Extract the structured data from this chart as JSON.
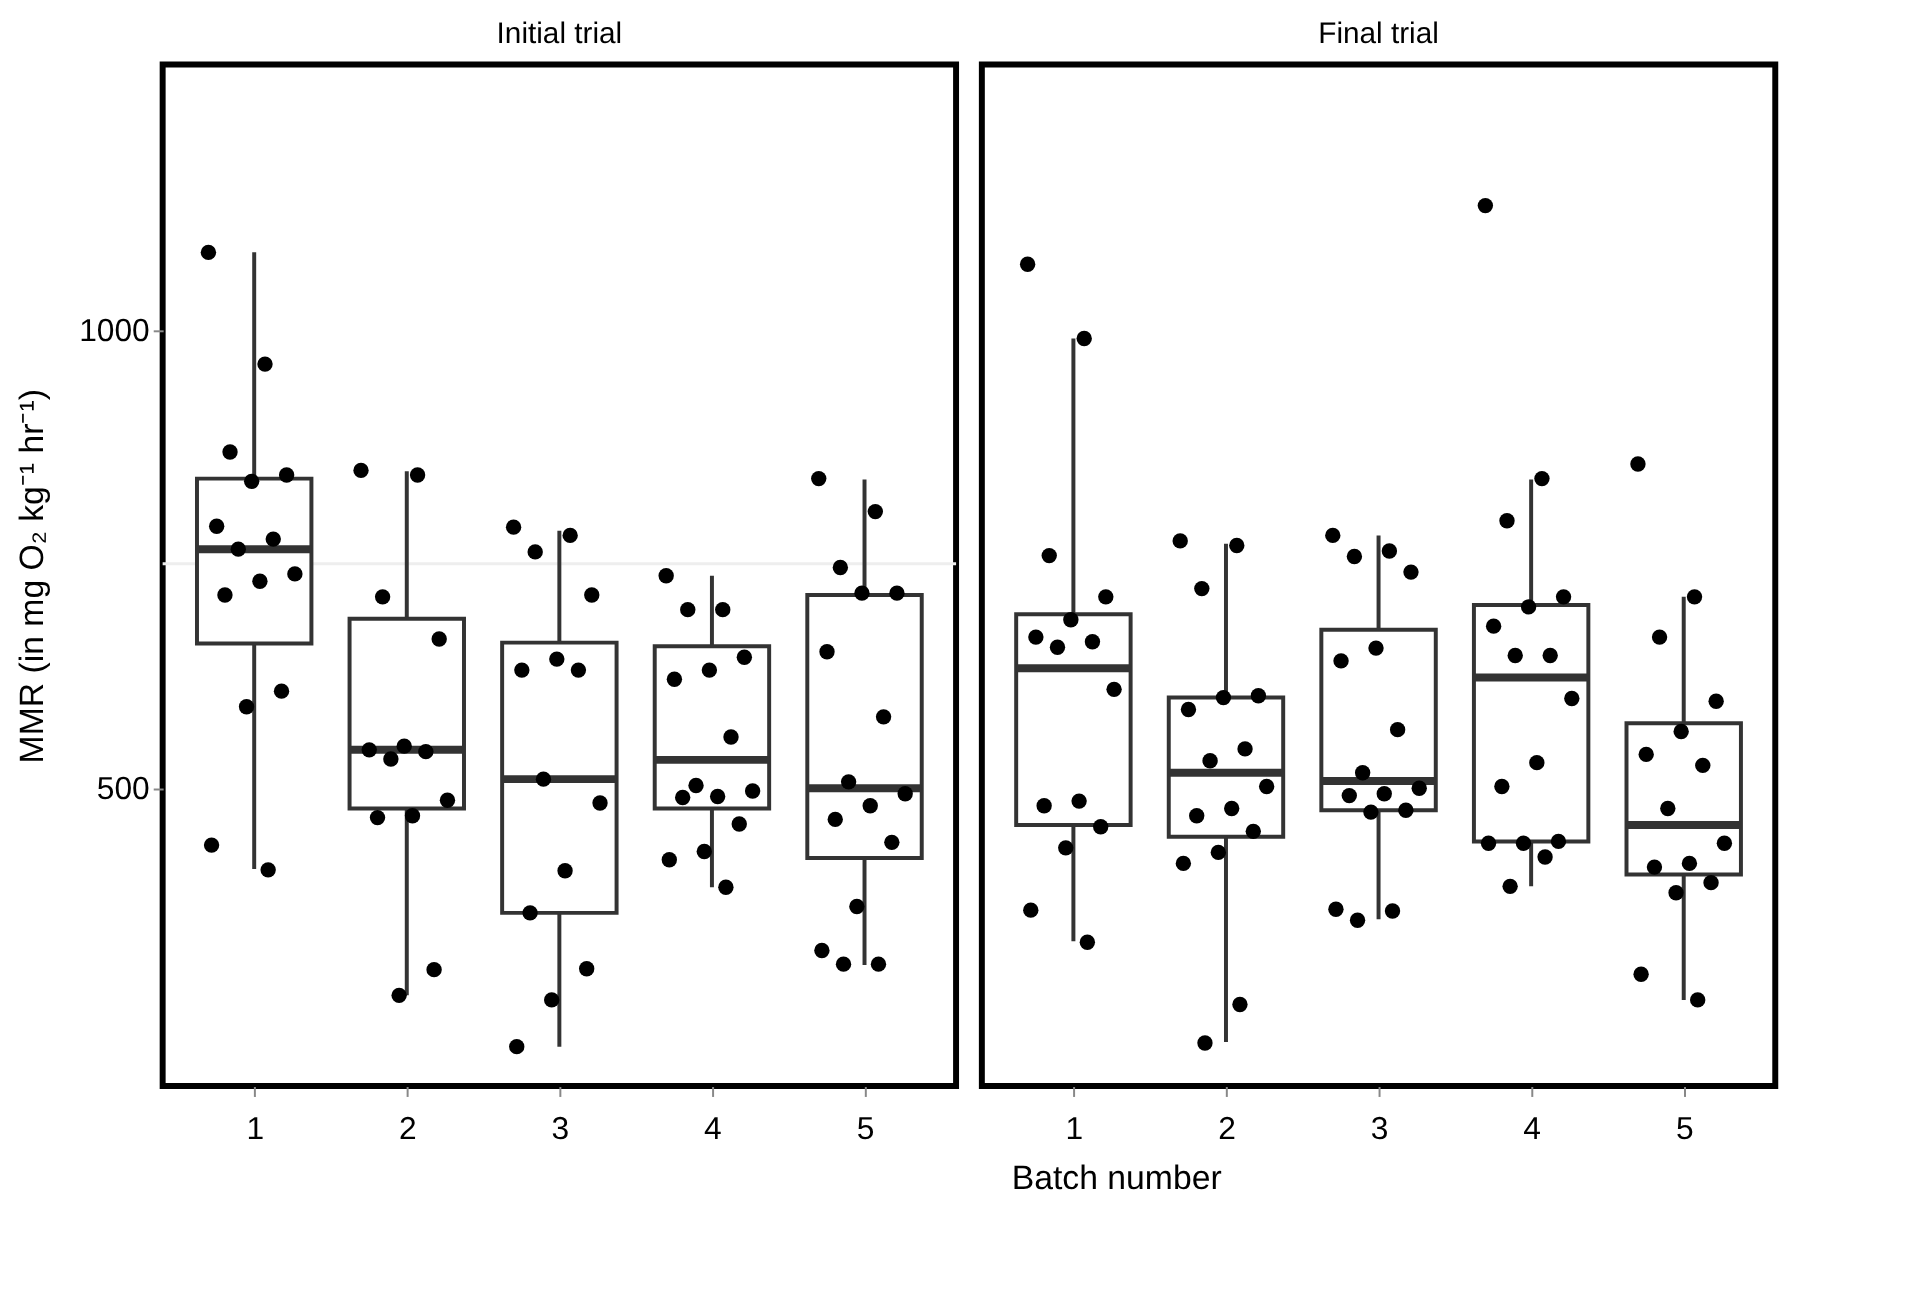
{
  "chart_data": [
    {
      "type": "box",
      "title": "Initial trial",
      "xlabel": "Batch number",
      "ylabel": "MMR (in mg O₂ kg⁻¹ hr⁻¹)",
      "categories": [
        "1",
        "2",
        "3",
        "4",
        "5"
      ],
      "ylim": [
        175,
        1290
      ],
      "yticks": [
        500,
        1000
      ],
      "grid": false,
      "legend": false,
      "marker": "circle",
      "ref_lines": [
        {
          "axis": "y",
          "value": 745,
          "color": "#eeeeee"
        }
      ],
      "series": [
        {
          "type": "box",
          "color": "#333333",
          "boxes": [
            {
              "low": 412,
              "q1": 658,
              "median": 761,
              "q3": 838,
              "high": 1085
            },
            {
              "low": 274,
              "q1": 478,
              "median": 542,
              "q3": 685,
              "high": 846
            },
            {
              "low": 218,
              "q1": 364,
              "median": 510,
              "q3": 659,
              "high": 781
            },
            {
              "low": 392,
              "q1": 478,
              "median": 531,
              "q3": 655,
              "high": 732
            },
            {
              "low": 307,
              "q1": 424,
              "median": 500,
              "q3": 711,
              "high": 837
            }
          ]
        },
        {
          "type": "scatter",
          "color": "#000000",
          "x": [
            "1",
            "1",
            "1",
            "1",
            "1",
            "1",
            "1",
            "1",
            "1",
            "1",
            "1",
            "1",
            "1",
            "1",
            "1",
            "2",
            "2",
            "2",
            "2",
            "2",
            "2",
            "2",
            "2",
            "2",
            "2",
            "2",
            "2",
            "2",
            "3",
            "3",
            "3",
            "3",
            "3",
            "3",
            "3",
            "3",
            "3",
            "3",
            "3",
            "3",
            "3",
            "3",
            "4",
            "4",
            "4",
            "4",
            "4",
            "4",
            "4",
            "4",
            "4",
            "4",
            "4",
            "4",
            "4",
            "4",
            "4",
            "5",
            "5",
            "5",
            "5",
            "5",
            "5",
            "5",
            "5",
            "5",
            "5",
            "5",
            "5",
            "5",
            "5",
            "5",
            "5"
          ],
          "values": [
            1085,
            963,
            867,
            842,
            835,
            786,
            772,
            761,
            734,
            726,
            711,
            606,
            589,
            438,
            411,
            847,
            842,
            709,
            663,
            546,
            542,
            540,
            532,
            487,
            470,
            468,
            302,
            274,
            785,
            776,
            758,
            711,
            641,
            629,
            629,
            510,
            484,
            410,
            364,
            303,
            269,
            218,
            732,
            695,
            695,
            643,
            629,
            619,
            556,
            503,
            497,
            491,
            490,
            461,
            431,
            422,
            392,
            838,
            802,
            741,
            713,
            713,
            649,
            578,
            507,
            494,
            481,
            466,
            441,
            371,
            323,
            308,
            308
          ]
        }
      ]
    },
    {
      "type": "box",
      "title": "Final trial",
      "categories": [
        "1",
        "2",
        "3",
        "4",
        "5"
      ],
      "ylim": [
        175,
        1290
      ],
      "tick_labels": "x",
      "grid": false,
      "legend": false,
      "marker": "circle",
      "series": [
        {
          "type": "box",
          "color": "#333333",
          "boxes": [
            {
              "low": 333,
              "q1": 460,
              "median": 631,
              "q3": 690,
              "high": 991
            },
            {
              "low": 223,
              "q1": 447,
              "median": 517,
              "q3": 599,
              "high": 767
            },
            {
              "low": 357,
              "q1": 476,
              "median": 508,
              "q3": 673,
              "high": 776
            },
            {
              "low": 393,
              "q1": 442,
              "median": 621,
              "q3": 700,
              "high": 837
            },
            {
              "low": 269,
              "q1": 406,
              "median": 460,
              "q3": 571,
              "high": 709
            }
          ]
        },
        {
          "type": "scatter",
          "color": "#000000",
          "x": [
            "1",
            "1",
            "1",
            "1",
            "1",
            "1",
            "1",
            "1",
            "1",
            "1",
            "1",
            "1",
            "1",
            "1",
            "1",
            "2",
            "2",
            "2",
            "2",
            "2",
            "2",
            "2",
            "2",
            "2",
            "2",
            "2",
            "2",
            "2",
            "2",
            "2",
            "2",
            "3",
            "3",
            "3",
            "3",
            "3",
            "3",
            "3",
            "3",
            "3",
            "3",
            "3",
            "3",
            "3",
            "3",
            "3",
            "3",
            "4",
            "4",
            "4",
            "4",
            "4",
            "4",
            "4",
            "4",
            "4",
            "4",
            "4",
            "4",
            "4",
            "4",
            "4",
            "4",
            "5",
            "5",
            "5",
            "5",
            "5",
            "5",
            "5",
            "5",
            "5",
            "5",
            "5",
            "5",
            "5",
            "5",
            "5"
          ],
          "values": [
            1072,
            991,
            754,
            709,
            684,
            665,
            660,
            654,
            608,
            486,
            481,
            458,
            435,
            367,
            332,
            770,
            765,
            718,
            601,
            599,
            586,
            543,
            530,
            502,
            478,
            470,
            453,
            430,
            418,
            264,
            222,
            776,
            759,
            753,
            736,
            653,
            639,
            564,
            517,
            500,
            494,
            492,
            476,
            474,
            368,
            366,
            356,
            1136,
            838,
            792,
            709,
            698,
            677,
            645,
            645,
            598,
            528,
            502,
            442,
            440,
            440,
            425,
            393,
            854,
            709,
            665,
            595,
            562,
            537,
            525,
            478,
            440,
            418,
            414,
            397,
            386,
            297,
            269
          ]
        }
      ]
    }
  ]
}
